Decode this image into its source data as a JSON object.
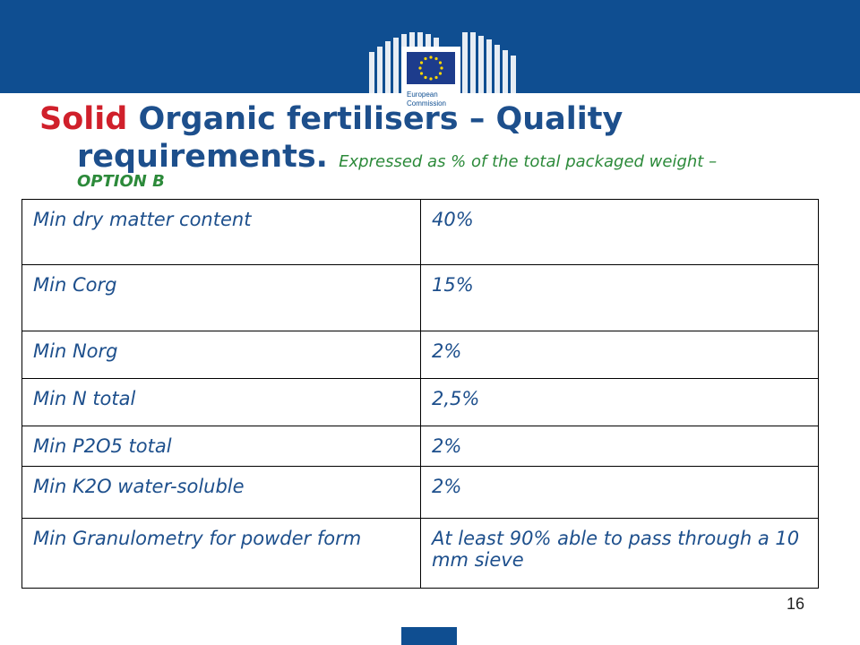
{
  "title": {
    "red": "Solid",
    "main1": "Organic fertilisers – Quality",
    "main2": "requirements.",
    "subtitle": "Expressed as % of the total packaged weight –",
    "subtitle2": "OPTION B"
  },
  "logo": {
    "text_line1": "European",
    "text_line2": "Commission"
  },
  "table": [
    {
      "label": "Min dry matter content",
      "value": "40%"
    },
    {
      "label": "Min Corg",
      "value": "15%"
    },
    {
      "label": "Min Norg",
      "value": "2%"
    },
    {
      "label": "Min N total",
      "value": "2,5%"
    },
    {
      "label": "Min P2O5 total",
      "value": "2%"
    },
    {
      "label": "Min K2O water-soluble",
      "value": "2%"
    },
    {
      "label": "Min Granulometry for powder form",
      "value": "At least 90% able to pass through a 10 mm sieve"
    }
  ],
  "page_number": "16",
  "colors": {
    "brand_blue": "#0f4e91",
    "title_blue": "#1d4f8c",
    "accent_red": "#d0202b",
    "subtitle_green": "#2c8a3a"
  }
}
